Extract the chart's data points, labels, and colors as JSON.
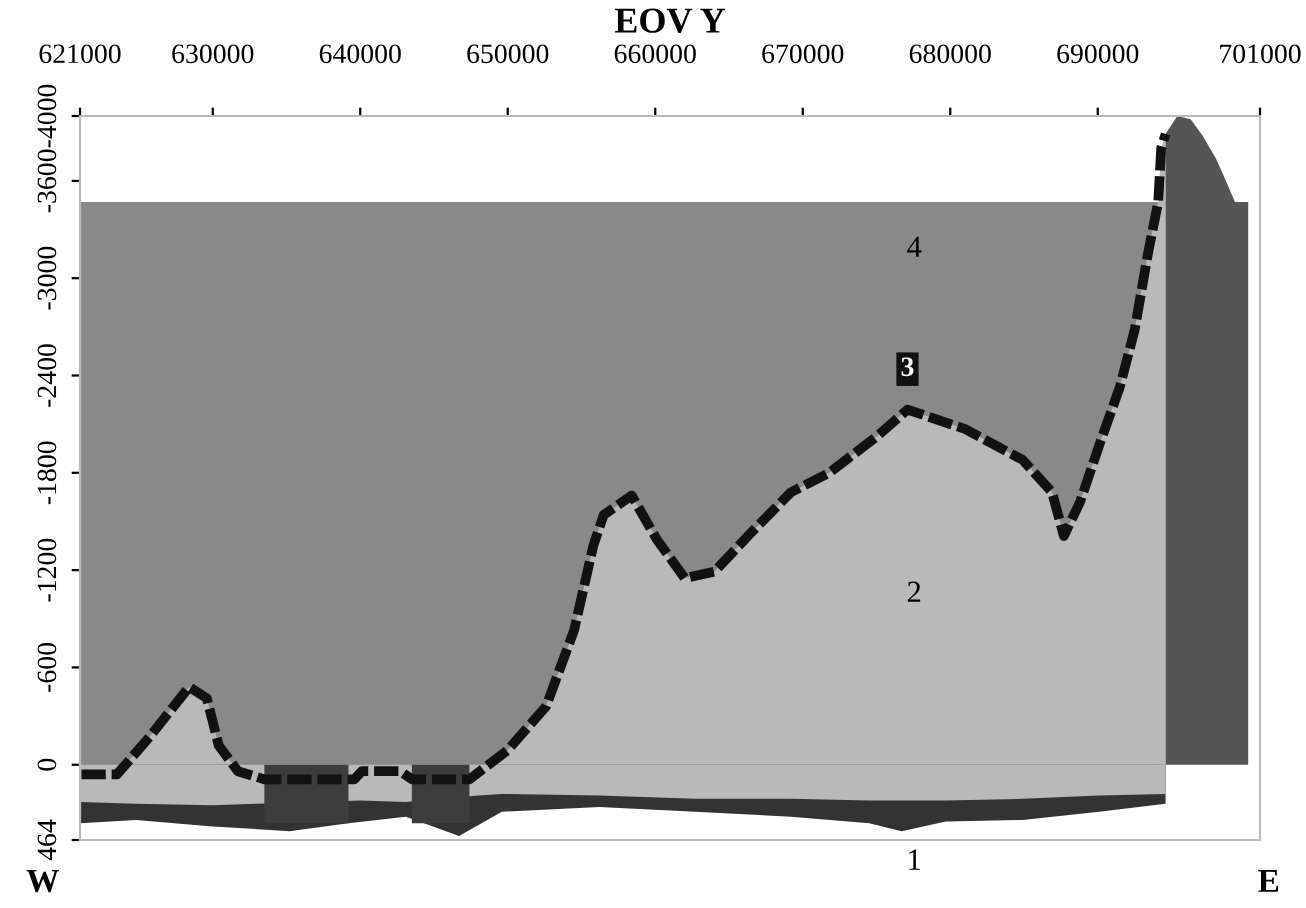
{
  "chart_data": {
    "type": "area",
    "xlabel": "EOV Y",
    "xlim": [
      621000,
      701000
    ],
    "xticks": [
      621000,
      630000,
      640000,
      650000,
      660000,
      670000,
      680000,
      690000,
      701000
    ],
    "ylim": [
      464,
      -4000
    ],
    "yticks": [
      -4000,
      -3600,
      -3000,
      -2400,
      -1800,
      -1200,
      -600,
      0,
      464
    ],
    "grid": false,
    "legend": false,
    "series": [
      {
        "color": "#898989",
        "x": [
          621000,
          694100
        ],
        "values": [
          -3470,
          -3470
        ]
      },
      {
        "color": "#b9b9b9",
        "line_style": "dashed",
        "x": [
          621100,
          623500,
          625700,
          628400,
          629600,
          630400,
          631700,
          633500,
          639600,
          640100,
          642700,
          643500,
          647400,
          650000,
          652600,
          654500,
          655800,
          656500,
          658400,
          660100,
          662000,
          664000,
          666600,
          669200,
          671800,
          675100,
          677100,
          681000,
          684900,
          686900,
          687700,
          688800,
          690100,
          691500,
          692500,
          693400,
          694100,
          694300,
          694600
        ],
        "values": [
          60,
          60,
          -170,
          -480,
          -410,
          -120,
          40,
          90,
          90,
          40,
          40,
          90,
          90,
          -90,
          -360,
          -830,
          -1350,
          -1540,
          -1660,
          -1390,
          -1150,
          -1190,
          -1440,
          -1680,
          -1800,
          -2030,
          -2190,
          -2070,
          -1880,
          -1680,
          -1410,
          -1620,
          -1970,
          -2330,
          -2680,
          -3150,
          -3470,
          -3800,
          -3890
        ]
      },
      {
        "color": "#555555",
        "x": [
          694600,
          695400,
          696300,
          697100,
          698000,
          698600,
          699300,
          700200
        ],
        "values": [
          -3890,
          -4000,
          -3980,
          -3880,
          -3740,
          -3620,
          -3470,
          -3470
        ]
      },
      {
        "color": "#333333",
        "x": [
          621000,
          624800,
          630000,
          635200,
          639200,
          643100,
          646700,
          649600,
          656200,
          662700,
          669200,
          674500,
          676700,
          679700,
          684900,
          690100,
          694600
        ],
        "values": [
          360,
          340,
          380,
          410,
          360,
          320,
          440,
          290,
          260,
          290,
          320,
          360,
          410,
          350,
          340,
          290,
          240
        ]
      },
      {
        "color": "#b9b9b9",
        "x": [
          621000,
          624800,
          630000,
          633000,
          640000,
          643100,
          648000,
          649600,
          656200,
          662700,
          669200,
          674500,
          676700,
          679700,
          684900,
          690100,
          694600
        ],
        "values": [
          230,
          240,
          250,
          240,
          220,
          230,
          190,
          180,
          190,
          210,
          210,
          220,
          220,
          220,
          210,
          190,
          180
        ]
      },
      {
        "color": "#3d3d3d",
        "x": [
          633500,
          639200
        ],
        "values": [
          360,
          360
        ]
      },
      {
        "color": "#3d3d3d",
        "x": [
          643500,
          647400
        ],
        "values": [
          360,
          360
        ]
      }
    ],
    "annotations": [
      {
        "text": "3",
        "x": 677100,
        "y": -2190
      },
      "4",
      "2",
      "1",
      "W",
      "E"
    ]
  }
}
